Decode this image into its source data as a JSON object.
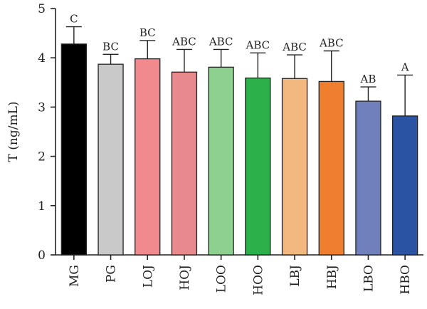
{
  "chart_data": {
    "type": "bar",
    "ylabel": "T (ng/mL)",
    "ylim": [
      0,
      5
    ],
    "yticks": [
      0,
      1,
      2,
      3,
      4,
      5
    ],
    "categories": [
      "MG",
      "PG",
      "LOJ",
      "HOJ",
      "LOO",
      "HOO",
      "LBJ",
      "HBJ",
      "LBO",
      "HBO"
    ],
    "values": [
      4.28,
      3.87,
      3.98,
      3.71,
      3.81,
      3.59,
      3.58,
      3.52,
      3.12,
      2.82
    ],
    "error_upper": [
      0.35,
      0.2,
      0.37,
      0.46,
      0.36,
      0.51,
      0.48,
      0.62,
      0.29,
      0.83
    ],
    "significance": [
      "C",
      "BC",
      "BC",
      "ABC",
      "ABC",
      "ABC",
      "ABC",
      "ABC",
      "AB",
      "A"
    ],
    "colors": [
      "#000000",
      "#c9c9c9",
      "#f08a8f",
      "#e8898e",
      "#8ed08f",
      "#2bb04a",
      "#f3b87f",
      "#ef7f2e",
      "#7080bd",
      "#2b53a4"
    ],
    "grid": false
  }
}
